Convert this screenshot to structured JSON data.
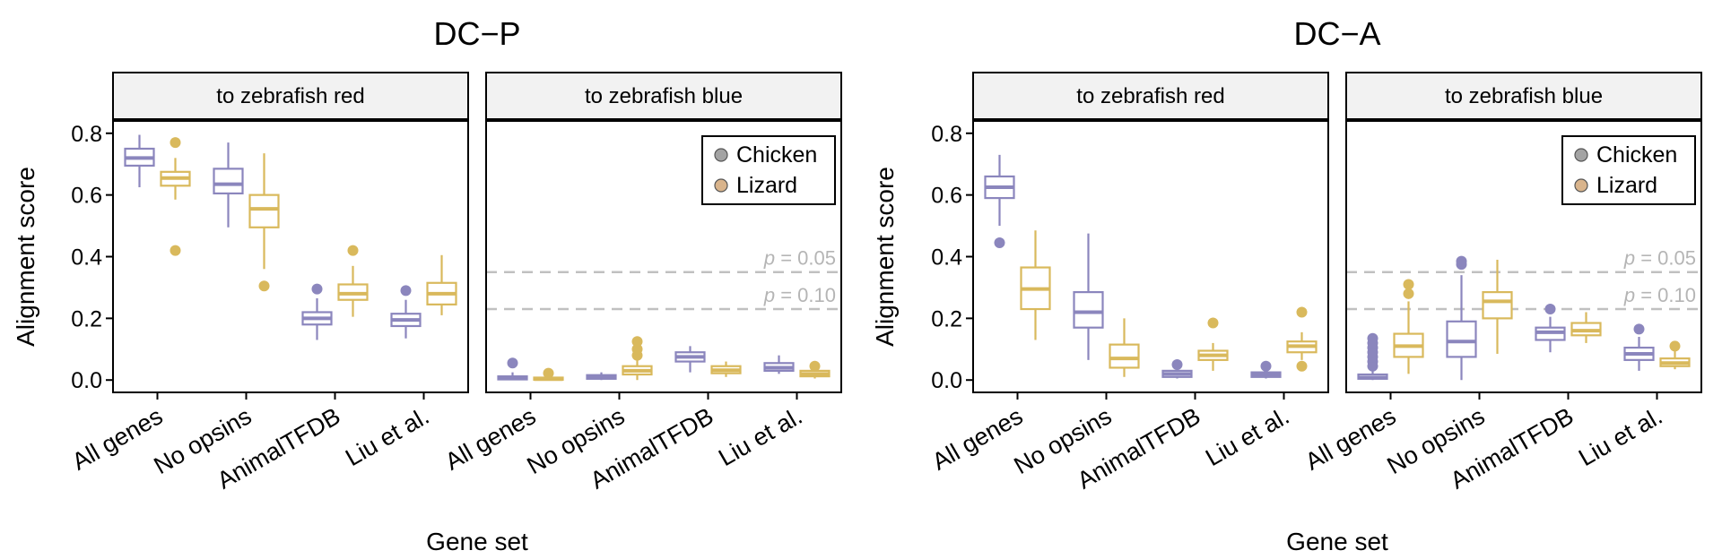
{
  "colors": {
    "chicken": "#8b86bd",
    "lizard": "#d9b95c",
    "strip_bg": "#f2f2f2",
    "ref_line": "#c0c0c0"
  },
  "chart_data": [
    {
      "type": "box",
      "title": "DC−P",
      "xlabel": "Gene set",
      "ylabel": "Alignment score",
      "ylim": [
        -0.04,
        0.84
      ],
      "yticks": [
        "0.0",
        "0.2",
        "0.4",
        "0.6",
        "0.8"
      ],
      "categories": [
        "All genes",
        "No opsins",
        "AnimalTFDB",
        "Liu et al."
      ],
      "series_names": [
        "Chicken",
        "Lizard"
      ],
      "legend": "top-right",
      "panels": [
        {
          "strip": "to zebrafish red",
          "show_legend": false,
          "ref_lines": [],
          "boxes": [
            {
              "category": "All genes",
              "series": "Chicken",
              "min": 0.625,
              "q1": 0.695,
              "median": 0.72,
              "q3": 0.75,
              "max": 0.795,
              "outliers": []
            },
            {
              "category": "All genes",
              "series": "Lizard",
              "min": 0.585,
              "q1": 0.63,
              "median": 0.655,
              "q3": 0.675,
              "max": 0.72,
              "outliers": [
                0.42,
                0.77
              ]
            },
            {
              "category": "No opsins",
              "series": "Chicken",
              "min": 0.495,
              "q1": 0.605,
              "median": 0.635,
              "q3": 0.685,
              "max": 0.77,
              "outliers": []
            },
            {
              "category": "No opsins",
              "series": "Lizard",
              "min": 0.36,
              "q1": 0.495,
              "median": 0.555,
              "q3": 0.6,
              "max": 0.735,
              "outliers": [
                0.305
              ]
            },
            {
              "category": "AnimalTFDB",
              "series": "Chicken",
              "min": 0.13,
              "q1": 0.18,
              "median": 0.2,
              "q3": 0.22,
              "max": 0.265,
              "outliers": [
                0.295
              ]
            },
            {
              "category": "AnimalTFDB",
              "series": "Lizard",
              "min": 0.205,
              "q1": 0.26,
              "median": 0.28,
              "q3": 0.31,
              "max": 0.37,
              "outliers": [
                0.42
              ]
            },
            {
              "category": "Liu et al.",
              "series": "Chicken",
              "min": 0.135,
              "q1": 0.175,
              "median": 0.195,
              "q3": 0.215,
              "max": 0.26,
              "outliers": [
                0.29
              ]
            },
            {
              "category": "Liu et al.",
              "series": "Lizard",
              "min": 0.21,
              "q1": 0.245,
              "median": 0.28,
              "q3": 0.315,
              "max": 0.405,
              "outliers": []
            }
          ]
        },
        {
          "strip": "to zebrafish blue",
          "show_legend": true,
          "ref_lines": [
            {
              "y": 0.35,
              "label_p": "p",
              "label_rest": " = 0.05"
            },
            {
              "y": 0.23,
              "label_p": "p",
              "label_rest": " = 0.10"
            }
          ],
          "boxes": [
            {
              "category": "All genes",
              "series": "Chicken",
              "min": 0.0,
              "q1": 0.002,
              "median": 0.006,
              "q3": 0.012,
              "max": 0.025,
              "outliers": [
                0.055
              ]
            },
            {
              "category": "All genes",
              "series": "Lizard",
              "min": 0.0,
              "q1": 0.001,
              "median": 0.003,
              "q3": 0.008,
              "max": 0.015,
              "outliers": [
                0.022
              ]
            },
            {
              "category": "No opsins",
              "series": "Chicken",
              "min": 0.0,
              "q1": 0.004,
              "median": 0.008,
              "q3": 0.016,
              "max": 0.025,
              "outliers": []
            },
            {
              "category": "No opsins",
              "series": "Lizard",
              "min": 0.0,
              "q1": 0.018,
              "median": 0.03,
              "q3": 0.045,
              "max": 0.07,
              "outliers": [
                0.08,
                0.1,
                0.125
              ]
            },
            {
              "category": "AnimalTFDB",
              "series": "Chicken",
              "min": 0.025,
              "q1": 0.06,
              "median": 0.075,
              "q3": 0.09,
              "max": 0.11,
              "outliers": []
            },
            {
              "category": "AnimalTFDB",
              "series": "Lizard",
              "min": 0.01,
              "q1": 0.022,
              "median": 0.032,
              "q3": 0.045,
              "max": 0.06,
              "outliers": []
            },
            {
              "category": "Liu et al.",
              "series": "Chicken",
              "min": 0.02,
              "q1": 0.03,
              "median": 0.04,
              "q3": 0.055,
              "max": 0.08,
              "outliers": []
            },
            {
              "category": "Liu et al.",
              "series": "Lizard",
              "min": 0.005,
              "q1": 0.012,
              "median": 0.02,
              "q3": 0.03,
              "max": 0.04,
              "outliers": [
                0.045
              ]
            }
          ]
        }
      ]
    },
    {
      "type": "box",
      "title": "DC−A",
      "xlabel": "Gene set",
      "ylabel": "Alignment score",
      "ylim": [
        -0.04,
        0.84
      ],
      "yticks": [
        "0.0",
        "0.2",
        "0.4",
        "0.6",
        "0.8"
      ],
      "categories": [
        "All genes",
        "No opsins",
        "AnimalTFDB",
        "Liu et al."
      ],
      "series_names": [
        "Chicken",
        "Lizard"
      ],
      "legend": "top-right",
      "panels": [
        {
          "strip": "to zebrafish red",
          "show_legend": false,
          "ref_lines": [],
          "boxes": [
            {
              "category": "All genes",
              "series": "Chicken",
              "min": 0.5,
              "q1": 0.59,
              "median": 0.625,
              "q3": 0.66,
              "max": 0.73,
              "outliers": [
                0.445
              ]
            },
            {
              "category": "All genes",
              "series": "Lizard",
              "min": 0.13,
              "q1": 0.23,
              "median": 0.295,
              "q3": 0.365,
              "max": 0.485,
              "outliers": []
            },
            {
              "category": "No opsins",
              "series": "Chicken",
              "min": 0.065,
              "q1": 0.17,
              "median": 0.22,
              "q3": 0.285,
              "max": 0.475,
              "outliers": []
            },
            {
              "category": "No opsins",
              "series": "Lizard",
              "min": 0.01,
              "q1": 0.04,
              "median": 0.07,
              "q3": 0.115,
              "max": 0.2,
              "outliers": []
            },
            {
              "category": "AnimalTFDB",
              "series": "Chicken",
              "min": 0.005,
              "q1": 0.01,
              "median": 0.02,
              "q3": 0.03,
              "max": 0.04,
              "outliers": [
                0.05
              ]
            },
            {
              "category": "AnimalTFDB",
              "series": "Lizard",
              "min": 0.03,
              "q1": 0.065,
              "median": 0.08,
              "q3": 0.095,
              "max": 0.12,
              "outliers": [
                0.185
              ]
            },
            {
              "category": "Liu et al.",
              "series": "Chicken",
              "min": 0.005,
              "q1": 0.01,
              "median": 0.018,
              "q3": 0.025,
              "max": 0.035,
              "outliers": [
                0.045
              ]
            },
            {
              "category": "Liu et al.",
              "series": "Lizard",
              "min": 0.065,
              "q1": 0.09,
              "median": 0.11,
              "q3": 0.125,
              "max": 0.155,
              "outliers": [
                0.045,
                0.22
              ]
            }
          ]
        },
        {
          "strip": "to zebrafish blue",
          "show_legend": true,
          "ref_lines": [
            {
              "y": 0.35,
              "label_p": "p",
              "label_rest": " = 0.05"
            },
            {
              "y": 0.23,
              "label_p": "p",
              "label_rest": " = 0.10"
            }
          ],
          "boxes": [
            {
              "category": "All genes",
              "series": "Chicken",
              "min": 0.0,
              "q1": 0.004,
              "median": 0.008,
              "q3": 0.018,
              "max": 0.03,
              "outliers": [
                0.045,
                0.06,
                0.075,
                0.09,
                0.105,
                0.12,
                0.135
              ]
            },
            {
              "category": "All genes",
              "series": "Lizard",
              "min": 0.02,
              "q1": 0.075,
              "median": 0.11,
              "q3": 0.15,
              "max": 0.255,
              "outliers": [
                0.28,
                0.31
              ]
            },
            {
              "category": "No opsins",
              "series": "Chicken",
              "min": 0.0,
              "q1": 0.075,
              "median": 0.125,
              "q3": 0.19,
              "max": 0.34,
              "outliers": [
                0.375,
                0.385
              ]
            },
            {
              "category": "No opsins",
              "series": "Lizard",
              "min": 0.085,
              "q1": 0.2,
              "median": 0.255,
              "q3": 0.285,
              "max": 0.39,
              "outliers": []
            },
            {
              "category": "AnimalTFDB",
              "series": "Chicken",
              "min": 0.09,
              "q1": 0.13,
              "median": 0.155,
              "q3": 0.17,
              "max": 0.205,
              "outliers": [
                0.23
              ]
            },
            {
              "category": "AnimalTFDB",
              "series": "Lizard",
              "min": 0.12,
              "q1": 0.145,
              "median": 0.16,
              "q3": 0.185,
              "max": 0.22,
              "outliers": []
            },
            {
              "category": "Liu et al.",
              "series": "Chicken",
              "min": 0.03,
              "q1": 0.065,
              "median": 0.085,
              "q3": 0.105,
              "max": 0.14,
              "outliers": [
                0.165
              ]
            },
            {
              "category": "Liu et al.",
              "series": "Lizard",
              "min": 0.035,
              "q1": 0.045,
              "median": 0.055,
              "q3": 0.07,
              "max": 0.1,
              "outliers": [
                0.11
              ]
            }
          ]
        }
      ]
    }
  ]
}
